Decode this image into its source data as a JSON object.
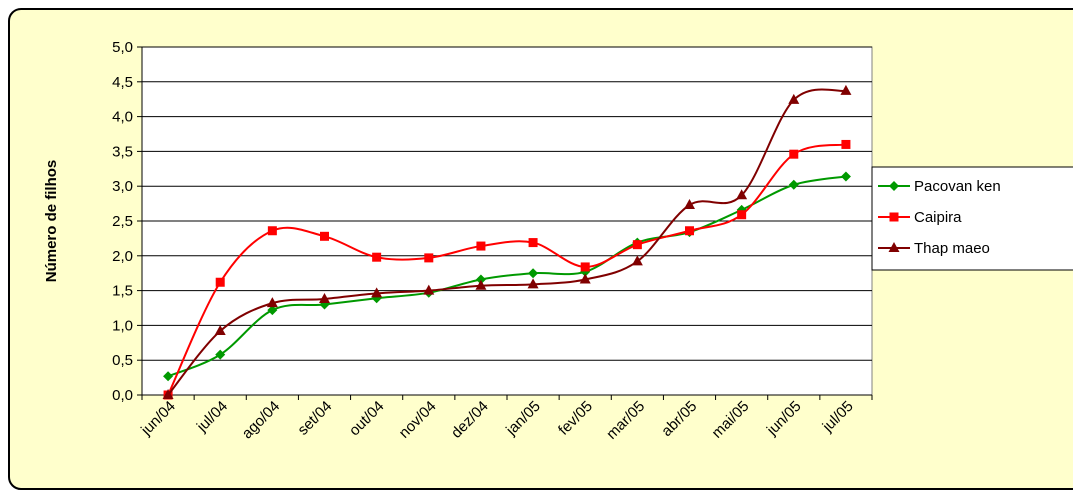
{
  "chart_data": {
    "type": "line",
    "y_label": "Número de filhos",
    "categories": [
      "jun/04",
      "jul/04",
      "ago/04",
      "set/04",
      "out/04",
      "nov/04",
      "dez/04",
      "jan/05",
      "fev/05",
      "mar/05",
      "abr/05",
      "mai/05",
      "jun/05",
      "jul/05"
    ],
    "series": [
      {
        "name": "Pacovan ken",
        "color": "#009900",
        "marker": "diamond",
        "values": [
          0.27,
          0.58,
          1.22,
          1.3,
          1.39,
          1.47,
          1.66,
          1.75,
          1.77,
          2.19,
          2.34,
          2.66,
          3.02,
          3.14
        ]
      },
      {
        "name": "Caipira",
        "color": "#ff0000",
        "marker": "square",
        "values": [
          0.0,
          1.62,
          2.36,
          2.28,
          1.98,
          1.97,
          2.14,
          2.19,
          1.84,
          2.16,
          2.36,
          2.59,
          3.46,
          3.6
        ]
      },
      {
        "name": "Thap maeo",
        "color": "#800000",
        "marker": "triangle",
        "values": [
          0.0,
          0.92,
          1.32,
          1.38,
          1.46,
          1.5,
          1.57,
          1.59,
          1.66,
          1.92,
          2.73,
          2.87,
          4.24,
          4.37
        ]
      }
    ],
    "ylim": [
      0,
      5
    ],
    "yticks": [
      {
        "value": 0,
        "label": "0,0"
      },
      {
        "value": 0.5,
        "label": "0,5"
      },
      {
        "value": 1,
        "label": "1,0"
      },
      {
        "value": 1.5,
        "label": "1,5"
      },
      {
        "value": 2,
        "label": "2,0"
      },
      {
        "value": 2.5,
        "label": "2,5"
      },
      {
        "value": 3,
        "label": "3,0"
      },
      {
        "value": 3.5,
        "label": "3,5"
      },
      {
        "value": 4,
        "label": "4,0"
      },
      {
        "value": 4.5,
        "label": "4,5"
      },
      {
        "value": 5,
        "label": "5,0"
      }
    ],
    "grid": true,
    "smooth": true,
    "legend": "right"
  }
}
